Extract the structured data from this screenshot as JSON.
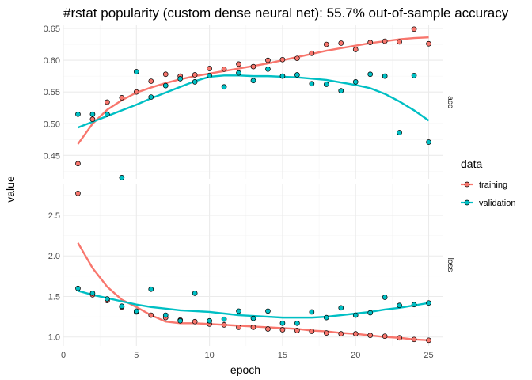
{
  "colors": {
    "training": "#F8766D",
    "validation": "#00BFC4"
  },
  "chart_data": {
    "type": "scatter",
    "title": "#rstat popularity (custom dense neural net): 55.7% out-of-sample accuracy",
    "xlabel": "epoch",
    "ylabel": "value",
    "xlim": [
      0,
      26
    ],
    "x_ticks": [
      "0",
      "5",
      "10",
      "15",
      "20",
      "25"
    ],
    "legend": {
      "title": "data",
      "position": "right",
      "entries": [
        "training",
        "validation"
      ]
    },
    "grid": true,
    "x": [
      1,
      2,
      3,
      4,
      5,
      6,
      7,
      8,
      9,
      10,
      11,
      12,
      13,
      14,
      15,
      16,
      17,
      18,
      19,
      20,
      21,
      22,
      23,
      24,
      25
    ],
    "facets": [
      {
        "label": "acc",
        "ylim": [
          0.413,
          0.655
        ],
        "y_ticks": [
          "0.45",
          "0.50",
          "0.55",
          "0.60",
          "0.65"
        ],
        "series": [
          {
            "name": "training",
            "values": [
              0.437,
              0.507,
              0.534,
              0.541,
              0.55,
              0.567,
              0.578,
              0.575,
              0.577,
              0.587,
              0.586,
              0.594,
              0.59,
              0.6,
              0.601,
              0.603,
              0.611,
              0.625,
              0.627,
              0.617,
              0.628,
              0.63,
              0.629,
              0.649,
              0.626
            ],
            "smooth": [
              0.468,
              0.5,
              0.522,
              0.537,
              0.549,
              0.557,
              0.564,
              0.57,
              0.575,
              0.579,
              0.583,
              0.587,
              0.591,
              0.595,
              0.6,
              0.605,
              0.61,
              0.615,
              0.619,
              0.623,
              0.627,
              0.63,
              0.633,
              0.635,
              0.636
            ]
          },
          {
            "name": "validation",
            "values": [
              0.515,
              0.515,
              0.515,
              0.415,
              0.582,
              0.542,
              0.56,
              0.571,
              0.566,
              0.576,
              0.558,
              0.58,
              0.568,
              0.586,
              0.575,
              0.577,
              0.563,
              0.562,
              0.552,
              0.566,
              0.578,
              0.575,
              0.486,
              0.576,
              0.471
            ],
            "smooth": [
              0.494,
              0.503,
              0.512,
              0.521,
              0.53,
              0.54,
              0.549,
              0.558,
              0.567,
              0.574,
              0.576,
              0.576,
              0.575,
              0.575,
              0.574,
              0.573,
              0.571,
              0.569,
              0.565,
              0.561,
              0.556,
              0.547,
              0.535,
              0.521,
              0.505
            ]
          }
        ]
      },
      {
        "label": "loss",
        "ylim": [
          0.89,
          2.89
        ],
        "y_ticks": [
          "1.0",
          "1.5",
          "2.0",
          "2.5"
        ],
        "series": [
          {
            "name": "training",
            "values": [
              2.77,
              1.52,
              1.45,
              1.37,
              1.31,
              1.27,
              1.24,
              1.21,
              1.19,
              1.16,
              1.15,
              1.12,
              1.12,
              1.1,
              1.09,
              1.08,
              1.07,
              1.05,
              1.04,
              1.04,
              1.02,
              1.01,
              0.99,
              0.97,
              0.96
            ],
            "smooth": [
              2.16,
              1.85,
              1.62,
              1.46,
              1.37,
              1.27,
              1.19,
              1.17,
              1.17,
              1.16,
              1.15,
              1.14,
              1.13,
              1.12,
              1.11,
              1.1,
              1.08,
              1.07,
              1.05,
              1.04,
              1.02,
              1.0,
              0.99,
              0.97,
              0.96
            ]
          },
          {
            "name": "validation",
            "values": [
              1.6,
              1.54,
              1.47,
              1.38,
              1.32,
              1.59,
              1.27,
              1.2,
              1.54,
              1.2,
              1.22,
              1.32,
              1.23,
              1.32,
              1.17,
              1.17,
              1.31,
              1.24,
              1.36,
              1.27,
              1.3,
              1.49,
              1.39,
              1.4,
              1.42
            ],
            "smooth": [
              1.57,
              1.52,
              1.48,
              1.44,
              1.4,
              1.37,
              1.35,
              1.33,
              1.32,
              1.31,
              1.29,
              1.27,
              1.26,
              1.25,
              1.24,
              1.24,
              1.24,
              1.25,
              1.27,
              1.29,
              1.31,
              1.34,
              1.36,
              1.39,
              1.42
            ]
          }
        ]
      }
    ]
  }
}
